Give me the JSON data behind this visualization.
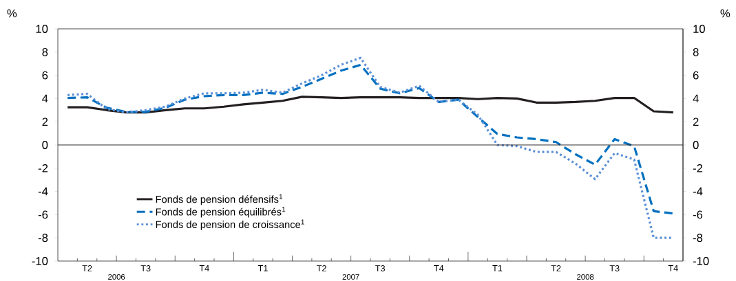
{
  "chart_data": {
    "type": "line",
    "ylabel": "%",
    "y2label": "%",
    "categories": [
      null,
      "T2",
      null,
      null,
      "T3",
      null,
      null,
      "T4",
      null,
      null,
      "T1",
      null,
      null,
      "T2",
      null,
      null,
      "T3",
      null,
      null,
      "T4",
      null,
      null,
      "T1",
      null,
      null,
      "T2",
      null,
      null,
      "T3",
      null,
      null,
      "T4"
    ],
    "series": [
      {
        "name": "Fonds de pension défensifs$^{1}$",
        "color": "#231f20",
        "line_style": "solid",
        "values": [
          3.25,
          3.25,
          3.0,
          2.8,
          2.8,
          3.0,
          3.15,
          3.15,
          3.3,
          3.5,
          3.65,
          3.8,
          4.15,
          4.1,
          4.05,
          4.1,
          4.1,
          4.1,
          4.05,
          4.05,
          4.05,
          3.95,
          4.05,
          4.0,
          3.65,
          3.65,
          3.7,
          3.8,
          4.05,
          4.05,
          2.9,
          2.8
        ]
      },
      {
        "name": "Fonds de pension équilibrés$^{1}$",
        "color": "#0070c0",
        "line_style": "dashed",
        "values": [
          4.05,
          4.1,
          3.2,
          2.85,
          2.85,
          3.2,
          3.9,
          4.2,
          4.3,
          4.3,
          4.5,
          4.4,
          5.0,
          5.7,
          6.4,
          6.9,
          4.85,
          4.45,
          4.9,
          3.7,
          3.9,
          2.4,
          0.95,
          0.65,
          0.5,
          0.25,
          -0.8,
          -1.7,
          0.5,
          -0.1,
          -5.7,
          -5.9
        ]
      },
      {
        "name": "Fonds de pension de croissance$^{1}$",
        "color": "#5b8fd6",
        "line_style": "dotted",
        "values": [
          4.3,
          4.4,
          3.1,
          2.8,
          3.0,
          3.3,
          4.0,
          4.45,
          4.45,
          4.5,
          4.75,
          4.5,
          5.3,
          6.0,
          6.9,
          7.5,
          5.0,
          4.5,
          5.1,
          3.7,
          3.9,
          2.6,
          0.0,
          -0.1,
          -0.6,
          -0.6,
          -1.6,
          -2.95,
          -0.7,
          -1.25,
          -8.0,
          -8.0
        ]
      }
    ],
    "ylim": [
      -10,
      10
    ],
    "yticks": [
      -10,
      -8,
      -6,
      -4,
      -2,
      0,
      2,
      4,
      6,
      8,
      10
    ],
    "y2lim": [
      -10,
      10
    ],
    "y2ticks": [
      -10,
      -8,
      -6,
      -4,
      -2,
      0,
      2,
      4,
      6,
      8,
      10
    ],
    "ref_lines": [
      {
        "axis": "y",
        "value": 0,
        "color": "#231f20"
      }
    ],
    "annotations": [
      "2006",
      "2007",
      "2008"
    ],
    "grid": false,
    "legend": "bottom left"
  }
}
